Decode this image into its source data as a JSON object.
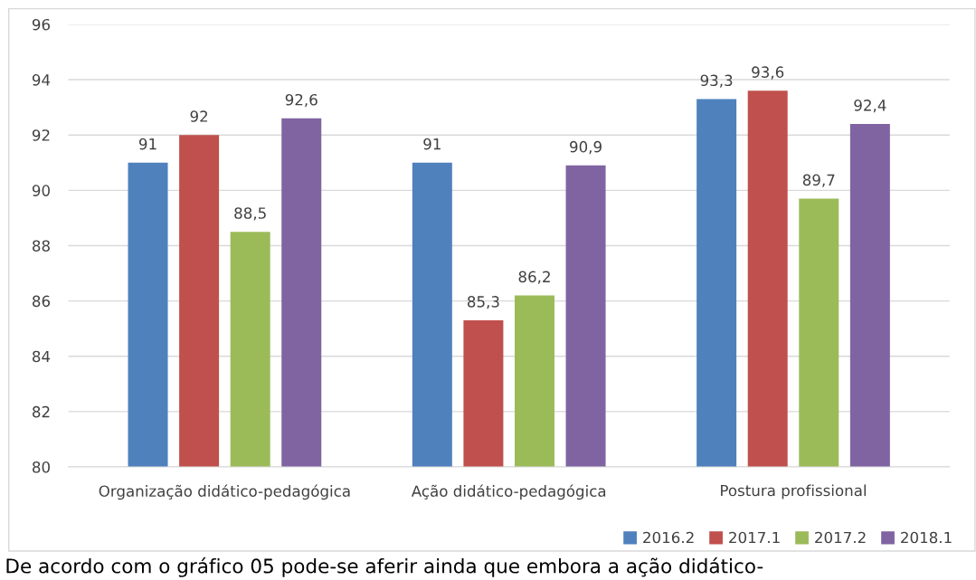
{
  "chart_data": {
    "type": "bar",
    "categories": [
      "Organização didático-pedagógica",
      "Ação didático-pedagógica",
      "Postura profissional"
    ],
    "series": [
      {
        "name": "2016.2",
        "color": "#4f81bd",
        "values": [
          91,
          91,
          93.3
        ],
        "value_labels": [
          "91",
          "91",
          "93,3"
        ]
      },
      {
        "name": "2017.1",
        "color": "#c0504d",
        "values": [
          92,
          85.3,
          93.6
        ],
        "value_labels": [
          "92",
          "85,3",
          "93,6"
        ]
      },
      {
        "name": "2017.2",
        "color": "#9bbb59",
        "values": [
          88.5,
          86.2,
          89.7
        ],
        "value_labels": [
          "88,5",
          "86,2",
          "89,7"
        ]
      },
      {
        "name": "2018.1",
        "color": "#8064a2",
        "values": [
          92.6,
          90.9,
          92.4
        ],
        "value_labels": [
          "92,6",
          "90,9",
          "92,4"
        ]
      }
    ],
    "ylim": [
      80,
      96
    ],
    "yticks": [
      80,
      82,
      84,
      86,
      88,
      90,
      92,
      94,
      96
    ],
    "grid": "y",
    "legend": "bottom right",
    "annotations": [
      "De acordo com o gráfico 05 pode-se aferir ainda que embora a ação didático-"
    ]
  }
}
